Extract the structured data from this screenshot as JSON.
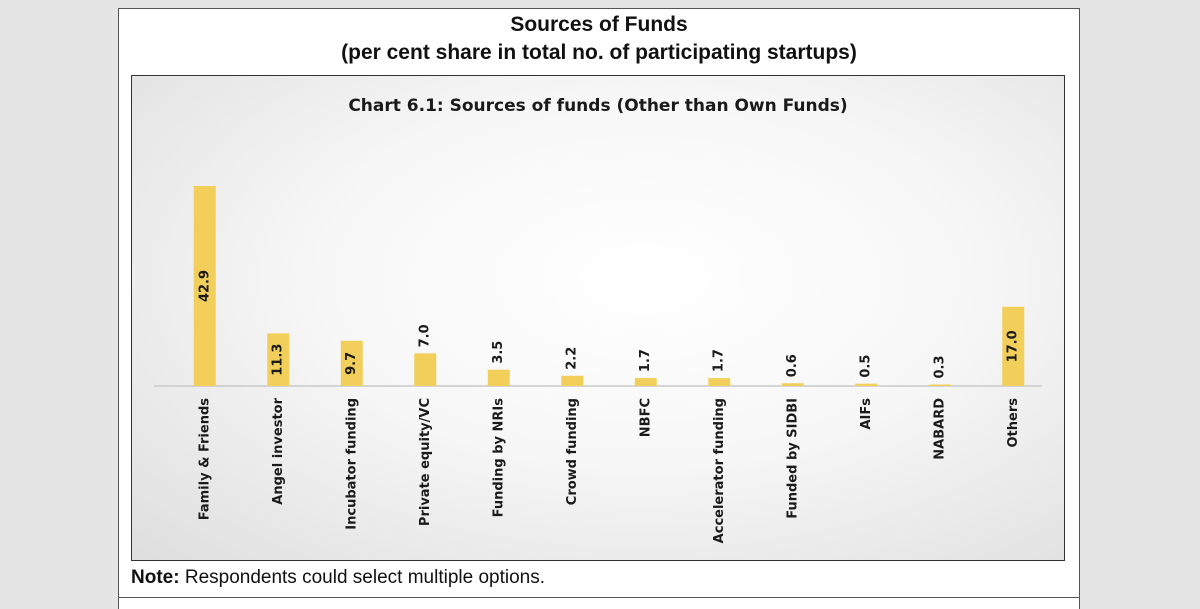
{
  "header": {
    "title": "Sources of Funds",
    "subtitle": "(per cent share in total no. of participating startups)"
  },
  "note": {
    "label": "Note:",
    "text": "Respondents could select multiple options."
  },
  "chart_data": {
    "type": "bar",
    "title": "Chart 6.1:  Sources of funds (Other than Own Funds)",
    "categories": [
      "Family & Friends",
      "Angel investor",
      "Incubator funding",
      "Private equity/VC",
      "Funding by NRIs",
      "Crowd funding",
      "NBFC",
      "Accelerator funding",
      "Funded by SIDBI",
      "AIFs",
      "NABARD",
      "Others"
    ],
    "values": [
      42.9,
      11.3,
      9.7,
      7.0,
      3.5,
      2.2,
      1.7,
      1.7,
      0.6,
      0.5,
      0.3,
      17.0
    ],
    "labels": [
      "42.9",
      "11.3",
      "9.7",
      "7.0",
      "3.5",
      "2.2",
      "1.7",
      "1.7",
      "0.6",
      "0.5",
      "0.3",
      "17.0"
    ],
    "xlabel": "",
    "ylabel": "",
    "ylim": [
      0,
      42.9
    ],
    "grid": false,
    "bar_color": "#f2cf5b",
    "label_color": "#1a1a1a"
  }
}
